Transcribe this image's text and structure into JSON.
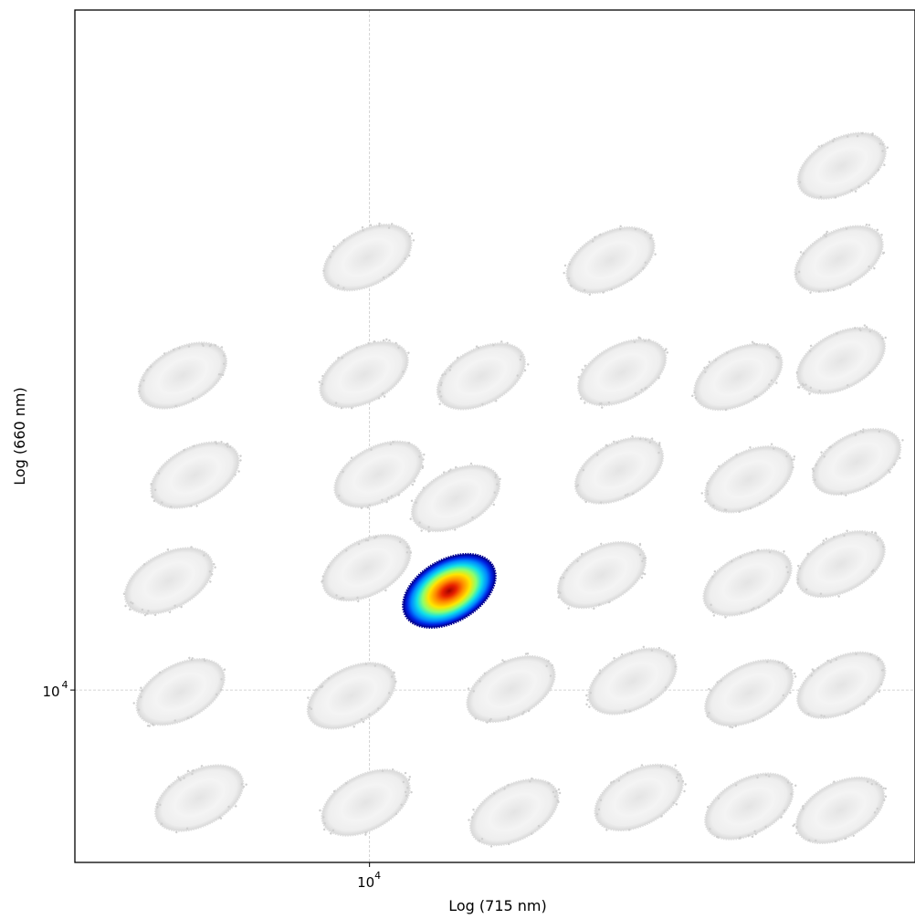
{
  "chart_data": {
    "type": "scatter",
    "title": "",
    "xlabel": "Log (715 nm)",
    "ylabel": "Log (660 nm)",
    "xscale": "log",
    "yscale": "log",
    "xlim": [
      2350,
      146000
    ],
    "ylim": [
      1900,
      7000000
    ],
    "grid": "dashed lines at x = 10^4 and y = 10^4",
    "xticks": [
      {
        "value": 10000,
        "base": "10",
        "exp": "4"
      }
    ],
    "yticks": [
      {
        "value": 10000,
        "base": "10",
        "exp": "4"
      }
    ],
    "highlight_colormap": "jet",
    "highlighted_cluster": {
      "x": 14800,
      "y": 26000
    },
    "background_color": "#dddddd",
    "clusters": [
      {
        "x": 4330,
        "y": 3530
      },
      {
        "x": 9820,
        "y": 3380
      },
      {
        "x": 20370,
        "y": 3080
      },
      {
        "x": 37570,
        "y": 3550
      },
      {
        "x": 64590,
        "y": 3260
      },
      {
        "x": 101120,
        "y": 3140
      },
      {
        "x": 3950,
        "y": 9810
      },
      {
        "x": 9150,
        "y": 9460
      },
      {
        "x": 20040,
        "y": 10100
      },
      {
        "x": 36420,
        "y": 10880
      },
      {
        "x": 64590,
        "y": 9720
      },
      {
        "x": 101630,
        "y": 10480
      },
      {
        "x": 3730,
        "y": 28620
      },
      {
        "x": 9860,
        "y": 32490
      },
      {
        "x": 31320,
        "y": 30290
      },
      {
        "x": 64090,
        "y": 28130
      },
      {
        "x": 101390,
        "y": 33640
      },
      {
        "x": 4240,
        "y": 79300
      },
      {
        "x": 10450,
        "y": 79940
      },
      {
        "x": 15280,
        "y": 63380
      },
      {
        "x": 34110,
        "y": 82830
      },
      {
        "x": 64590,
        "y": 76070
      },
      {
        "x": 109600,
        "y": 90150
      },
      {
        "x": 3990,
        "y": 207000
      },
      {
        "x": 9730,
        "y": 208700
      },
      {
        "x": 17310,
        "y": 205400
      },
      {
        "x": 34590,
        "y": 213300
      },
      {
        "x": 61230,
        "y": 204000
      },
      {
        "x": 101480,
        "y": 238800
      },
      {
        "x": 9900,
        "y": 645000
      },
      {
        "x": 32680,
        "y": 628700
      },
      {
        "x": 100430,
        "y": 636300
      },
      {
        "x": 101860,
        "y": 1560000
      }
    ]
  }
}
